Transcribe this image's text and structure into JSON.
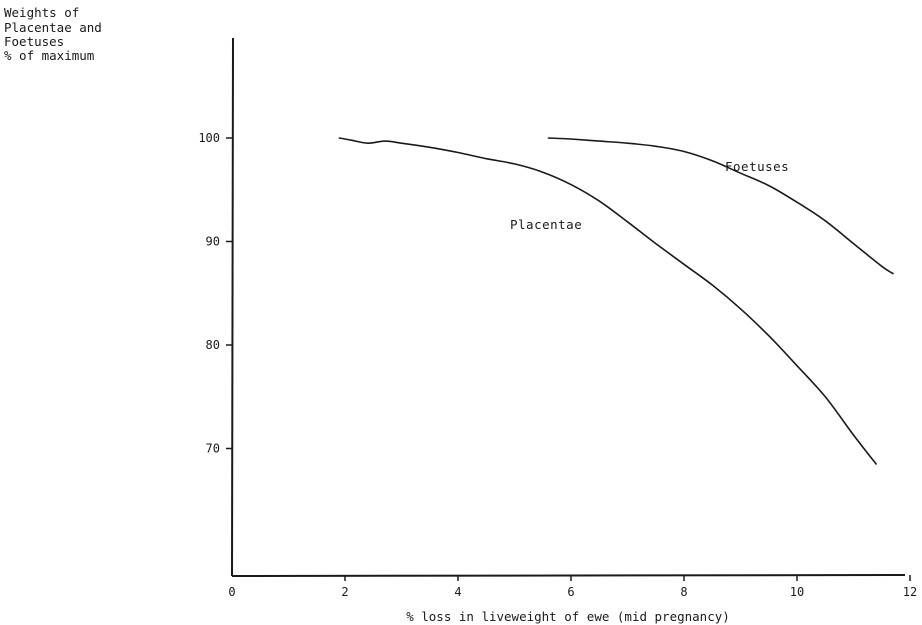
{
  "chart_data": {
    "type": "line",
    "title": "",
    "ylabel_lines": [
      "Weights of",
      "Placentae and",
      "Foetuses",
      "% of maximum"
    ],
    "xlabel": "% loss in liveweight of ewe (mid pregnancy)",
    "xlim": [
      0,
      12
    ],
    "ylim": [
      60,
      110
    ],
    "xticks": [
      0,
      2,
      4,
      6,
      8,
      10,
      12
    ],
    "yticks": [
      70,
      80,
      90,
      100
    ],
    "grid": false,
    "legend": "none",
    "series": [
      {
        "name": "Placentae",
        "x": [
          1.9,
          2.1,
          2.4,
          2.7,
          3.0,
          3.5,
          4.0,
          4.5,
          5.0,
          5.5,
          6.0,
          6.5,
          7.0,
          7.5,
          8.0,
          8.5,
          9.0,
          9.5,
          10.0,
          10.5,
          11.0,
          11.4
        ],
        "y": [
          100.0,
          99.8,
          99.5,
          99.7,
          99.5,
          99.1,
          98.6,
          98.0,
          97.5,
          96.7,
          95.5,
          93.9,
          91.9,
          89.8,
          87.8,
          85.8,
          83.5,
          80.9,
          78.0,
          75.0,
          71.3,
          68.5
        ]
      },
      {
        "name": "Foetuses",
        "x": [
          5.6,
          6.0,
          6.5,
          7.0,
          7.5,
          8.0,
          8.5,
          9.0,
          9.5,
          10.0,
          10.5,
          11.0,
          11.5,
          11.7
        ],
        "y": [
          100.0,
          99.9,
          99.7,
          99.5,
          99.2,
          98.7,
          97.8,
          96.6,
          95.4,
          93.8,
          92.0,
          89.8,
          87.6,
          86.9
        ]
      }
    ],
    "annotations": [
      {
        "text": "Foetuses",
        "series": "Foetuses"
      },
      {
        "text": "Placentae",
        "series": "Placentae"
      }
    ]
  }
}
